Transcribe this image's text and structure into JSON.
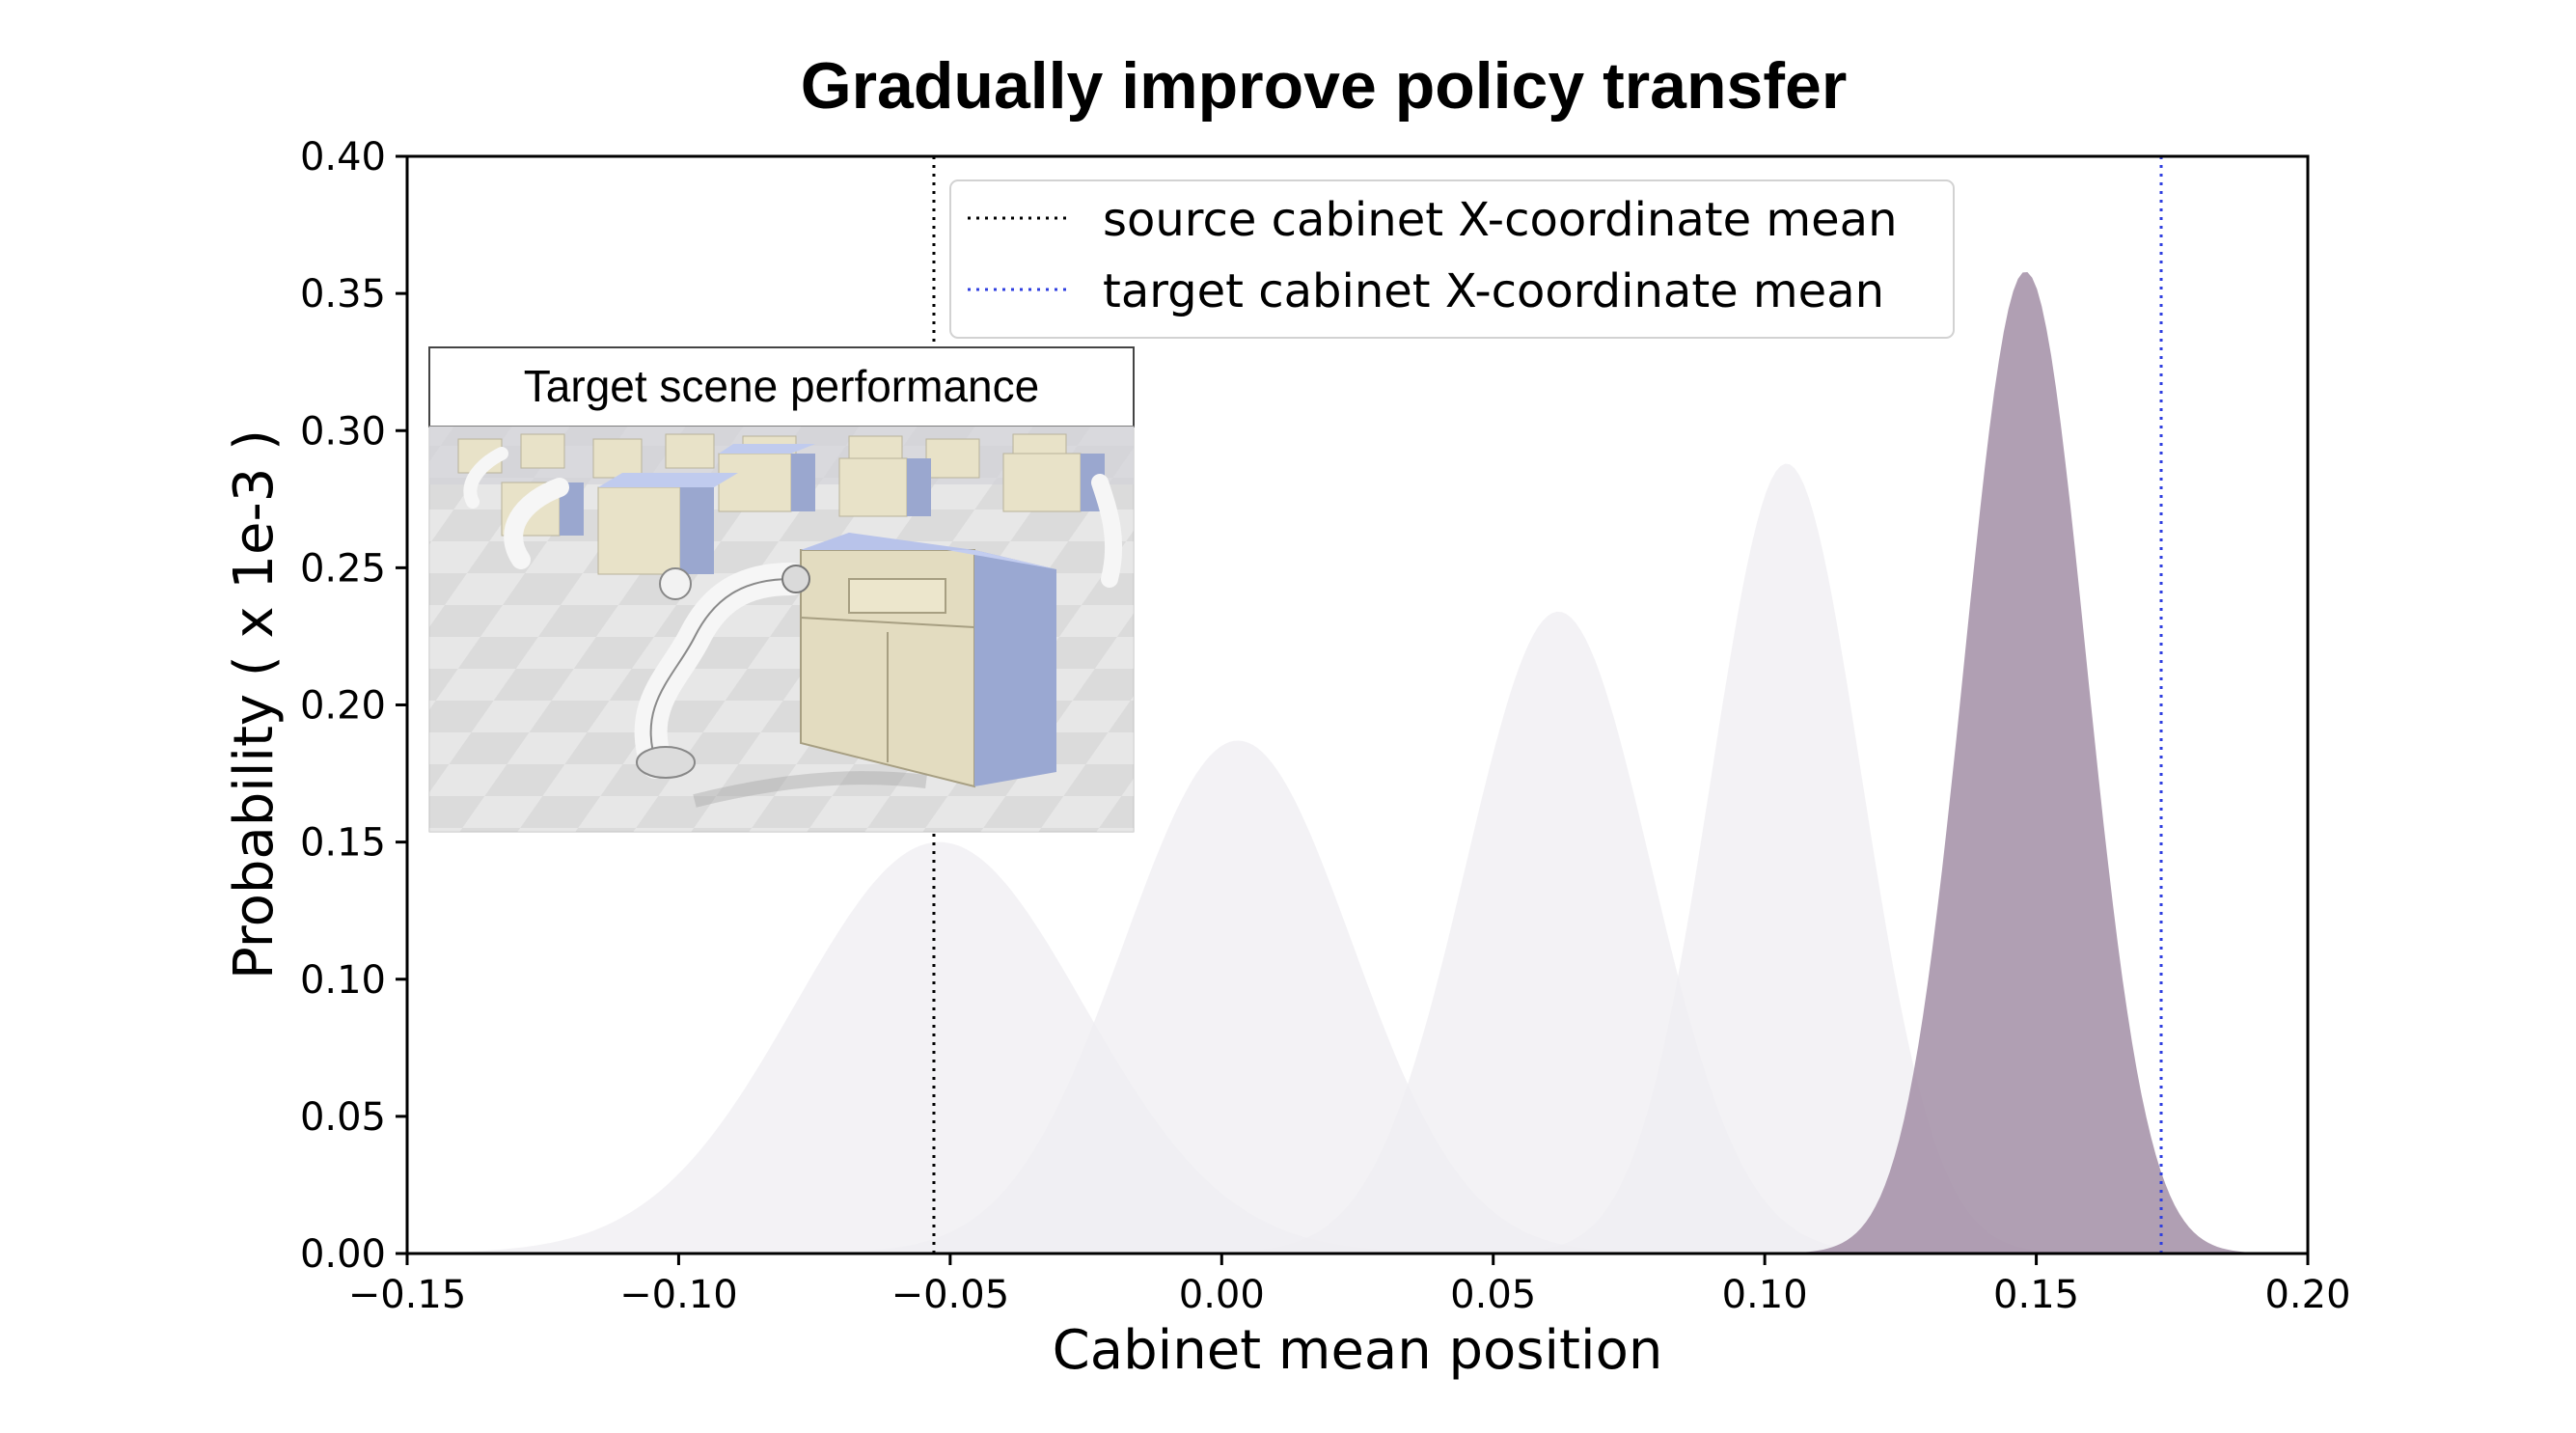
{
  "chart_data": {
    "type": "area",
    "title": "Gradually improve policy transfer",
    "xlabel": "Cabinet mean position",
    "ylabel": "Probability ( x 1e-3 )",
    "xlim": [
      -0.15,
      0.2
    ],
    "ylim": [
      0.0,
      0.4
    ],
    "x_ticks": [
      "−0.15",
      "−0.10",
      "−0.05",
      "0.00",
      "0.05",
      "0.10",
      "0.15",
      "0.20"
    ],
    "y_ticks": [
      "0.00",
      "0.05",
      "0.10",
      "0.15",
      "0.20",
      "0.25",
      "0.30",
      "0.35",
      "0.40"
    ],
    "distributions": [
      {
        "mean": -0.052,
        "std": 0.0265,
        "peak": 0.15,
        "color": "#efedf1",
        "opacity": 0.75
      },
      {
        "mean": 0.003,
        "std": 0.021,
        "peak": 0.187,
        "color": "#efedf1",
        "opacity": 0.75
      },
      {
        "mean": 0.062,
        "std": 0.017,
        "peak": 0.234,
        "color": "#efedf1",
        "opacity": 0.75
      },
      {
        "mean": 0.104,
        "std": 0.0138,
        "peak": 0.288,
        "color": "#efedf1",
        "opacity": 0.75
      },
      {
        "mean": 0.148,
        "std": 0.0112,
        "peak": 0.358,
        "color": "#a28ea6",
        "opacity": 0.85
      }
    ],
    "vlines": [
      {
        "x": -0.053,
        "label": "source cabinet X-coordinate mean",
        "color": "#000000"
      },
      {
        "x": 0.173,
        "label": "target cabinet X-coordinate mean",
        "color": "#2f3fe0"
      }
    ],
    "legend": "top-center",
    "grid": false
  },
  "inset": {
    "title": "Target scene performance",
    "image": "robot-arms-opening-cabinet-drawers-render"
  }
}
